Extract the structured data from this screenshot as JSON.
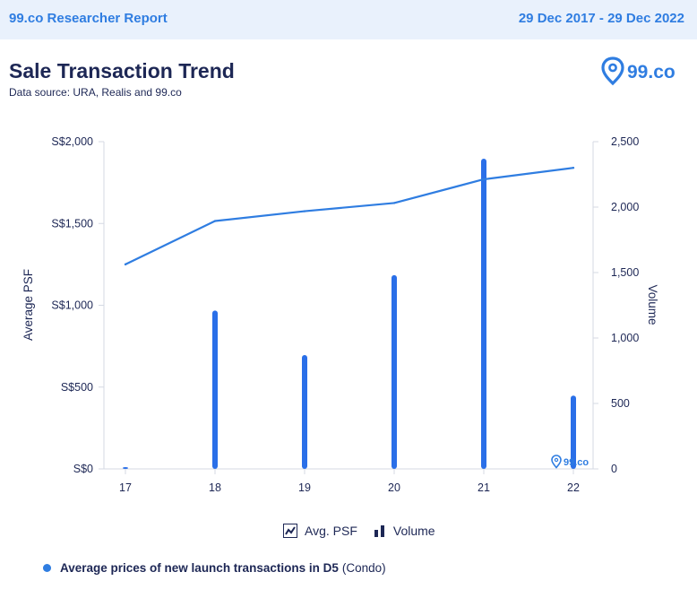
{
  "header": {
    "brand": "99.co Researcher Report",
    "date_range": "29 Dec 2017 - 29 Dec 2022"
  },
  "title": "Sale Transaction Trend",
  "subtitle": "Data source: URA, Realis and 99.co",
  "logo_text": "99.co",
  "watermark_text": "99.co",
  "legend": {
    "line_label": "Avg. PSF",
    "bar_label": "Volume"
  },
  "footnote": {
    "bold": "Average prices of new launch transactions in D5",
    "rest": "(Condo)"
  },
  "colors": {
    "accent": "#2f7de1",
    "bar": "#2a6fe8",
    "text": "#1d2755",
    "header_bg": "#e9f1fc"
  },
  "chart_data": {
    "type": "bar",
    "categories": [
      "17",
      "18",
      "19",
      "20",
      "21",
      "22"
    ],
    "series": [
      {
        "name": "Avg. PSF",
        "type": "line",
        "axis": "left",
        "values": [
          1250,
          1515,
          1575,
          1625,
          1770,
          1840
        ]
      },
      {
        "name": "Volume",
        "type": "bar",
        "axis": "right",
        "values": [
          8,
          1210,
          870,
          1480,
          2370,
          560
        ]
      }
    ],
    "ylabel": "Average PSF",
    "ylabel_right": "Volume",
    "ylim": [
      0,
      2000
    ],
    "ylim_right": [
      0,
      2500
    ],
    "yticks": [
      "S$0",
      "S$500",
      "S$1,000",
      "S$1,500",
      "S$2,000"
    ],
    "yticks_right": [
      "0",
      "500",
      "1,000",
      "1,500",
      "2,000",
      "2,500"
    ],
    "grid": false,
    "legend_position": "bottom"
  }
}
